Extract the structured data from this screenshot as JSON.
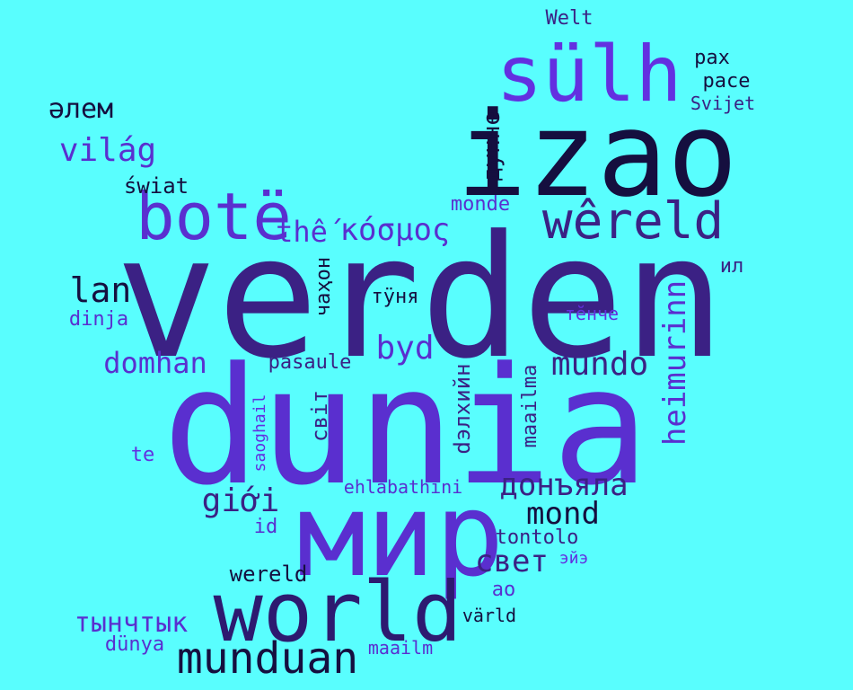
{
  "palette": {
    "background": "#59fefe",
    "dark": "#150f3f",
    "indigo": "#3b2184",
    "purple": "#5a2fcf",
    "violet": "#6330e0"
  },
  "words": [
    {
      "text": "verden",
      "color": "#3b2184"
    },
    {
      "text": "dunia",
      "color": "#5a2fcf"
    },
    {
      "text": "izao",
      "color": "#150f3f"
    },
    {
      "text": "мир",
      "color": "#5a2fcf"
    },
    {
      "text": "world",
      "color": "#2d1a70"
    },
    {
      "text": "sülh",
      "color": "#6330e0"
    },
    {
      "text": "botë",
      "color": "#5a2fcf"
    },
    {
      "text": "wêreld",
      "color": "#3b2184"
    },
    {
      "text": "munduan",
      "color": "#150f3f"
    },
    {
      "text": "heimurinn",
      "color": "#5a2fcf"
    },
    {
      "text": "дунне",
      "color": "#150f3f"
    },
    {
      "text": "mundo",
      "color": "#3b2184"
    },
    {
      "text": "byd",
      "color": "#5a2fcf"
    },
    {
      "text": "dэлхийн",
      "color": "#3b2184"
    },
    {
      "text": "донъяла",
      "color": "#3b2184"
    },
    {
      "text": "világ",
      "color": "#5a2fcf"
    },
    {
      "text": "κόσμος",
      "color": "#5a2fcf"
    },
    {
      "text": "thế",
      "color": "#5a2fcf"
    },
    {
      "text": "lan",
      "color": "#150f3f"
    },
    {
      "text": "domhan",
      "color": "#5a2fcf"
    },
    {
      "text": "giới",
      "color": "#3b2184"
    },
    {
      "text": "mond",
      "color": "#150f3f"
    },
    {
      "text": "свет",
      "color": "#3b2184"
    },
    {
      "text": "тынчтык",
      "color": "#5a2fcf"
    },
    {
      "text": "əлем",
      "color": "#150f3f"
    },
    {
      "text": "світ",
      "color": "#3b2184"
    },
    {
      "text": "чаҳон",
      "color": "#150f3f"
    },
    {
      "text": "maailma",
      "color": "#3b2184"
    },
    {
      "text": "saoghail",
      "color": "#6330e0"
    },
    {
      "text": "świat",
      "color": "#150f3f"
    },
    {
      "text": "Welt",
      "color": "#3b2184"
    },
    {
      "text": "pax",
      "color": "#150f3f"
    },
    {
      "text": "pace",
      "color": "#150f3f"
    },
    {
      "text": "Svijet",
      "color": "#3b2184"
    },
    {
      "text": "monde",
      "color": "#5a2fcf"
    },
    {
      "text": "ил",
      "color": "#3b2184"
    },
    {
      "text": "тӗнче",
      "color": "#6330e0"
    },
    {
      "text": "тӱня",
      "color": "#150f3f"
    },
    {
      "text": "dinja",
      "color": "#5a2fcf"
    },
    {
      "text": "pasaule",
      "color": "#3b2184"
    },
    {
      "text": "te",
      "color": "#6330e0"
    },
    {
      "text": "ehlabathini",
      "color": "#5a2fcf"
    },
    {
      "text": "id",
      "color": "#5a2fcf"
    },
    {
      "text": "tontolo",
      "color": "#3b2184"
    },
    {
      "text": "эйэ",
      "color": "#6330e0"
    },
    {
      "text": "wereld",
      "color": "#150f3f"
    },
    {
      "text": "ao",
      "color": "#5a2fcf"
    },
    {
      "text": "värld",
      "color": "#150f3f"
    },
    {
      "text": "dünya",
      "color": "#5a2fcf"
    },
    {
      "text": "maailm",
      "color": "#5a2fcf"
    }
  ]
}
